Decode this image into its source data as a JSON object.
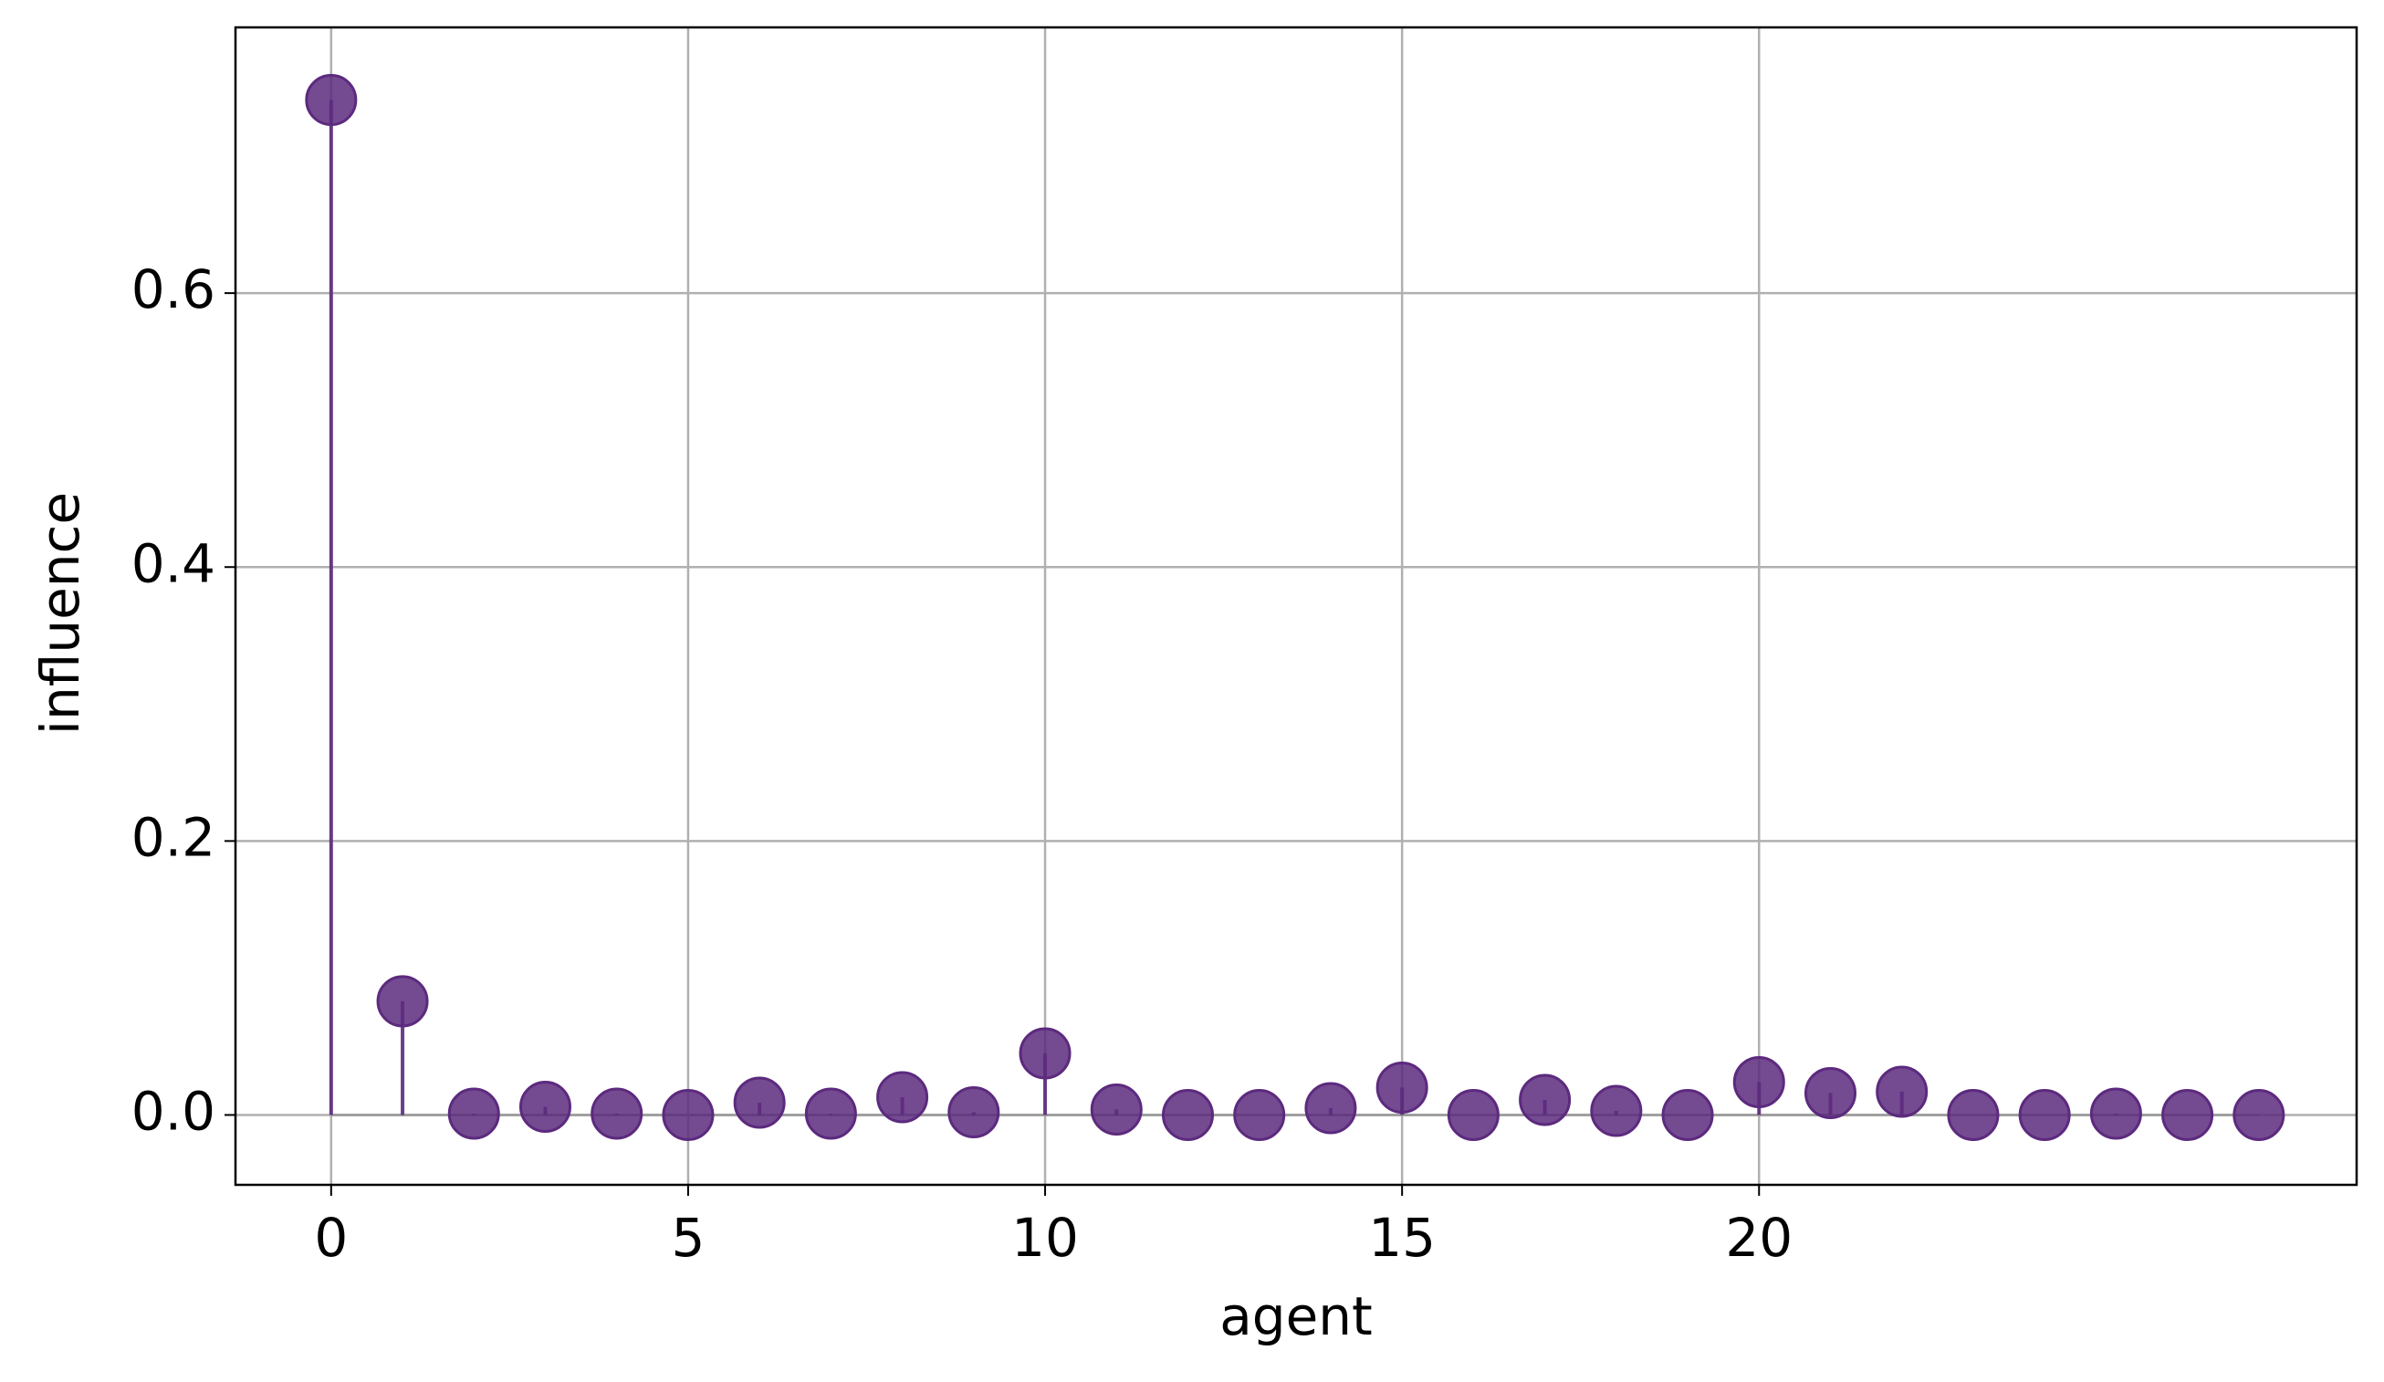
{
  "chart_data": {
    "type": "stem",
    "xlabel": "agent",
    "ylabel": "influence",
    "x": [
      0,
      1,
      2,
      3,
      4,
      5,
      6,
      7,
      8,
      9,
      10,
      11,
      12,
      13,
      14,
      15,
      16,
      17,
      18,
      19,
      20,
      21,
      22,
      23,
      24,
      25,
      26,
      27
    ],
    "values": [
      0.741,
      0.083,
      0.001,
      0.006,
      0.001,
      0,
      0.009,
      0.001,
      0.013,
      0.002,
      0.045,
      0.004,
      0,
      0,
      0.005,
      0.02,
      0,
      0.011,
      0.003,
      0,
      0.024,
      0.016,
      0.017,
      0,
      0,
      0.001,
      0,
      0
    ],
    "color": "#5c2a7e",
    "xlim": [
      -1.34,
      28.37
    ],
    "ylim": [
      -0.051,
      0.794
    ],
    "xticks": [
      0,
      5,
      10,
      15,
      20
    ],
    "yticks": [
      {
        "value": 0,
        "label": "0.0"
      },
      0.2,
      0.4,
      0.6
    ],
    "grid": true
  }
}
